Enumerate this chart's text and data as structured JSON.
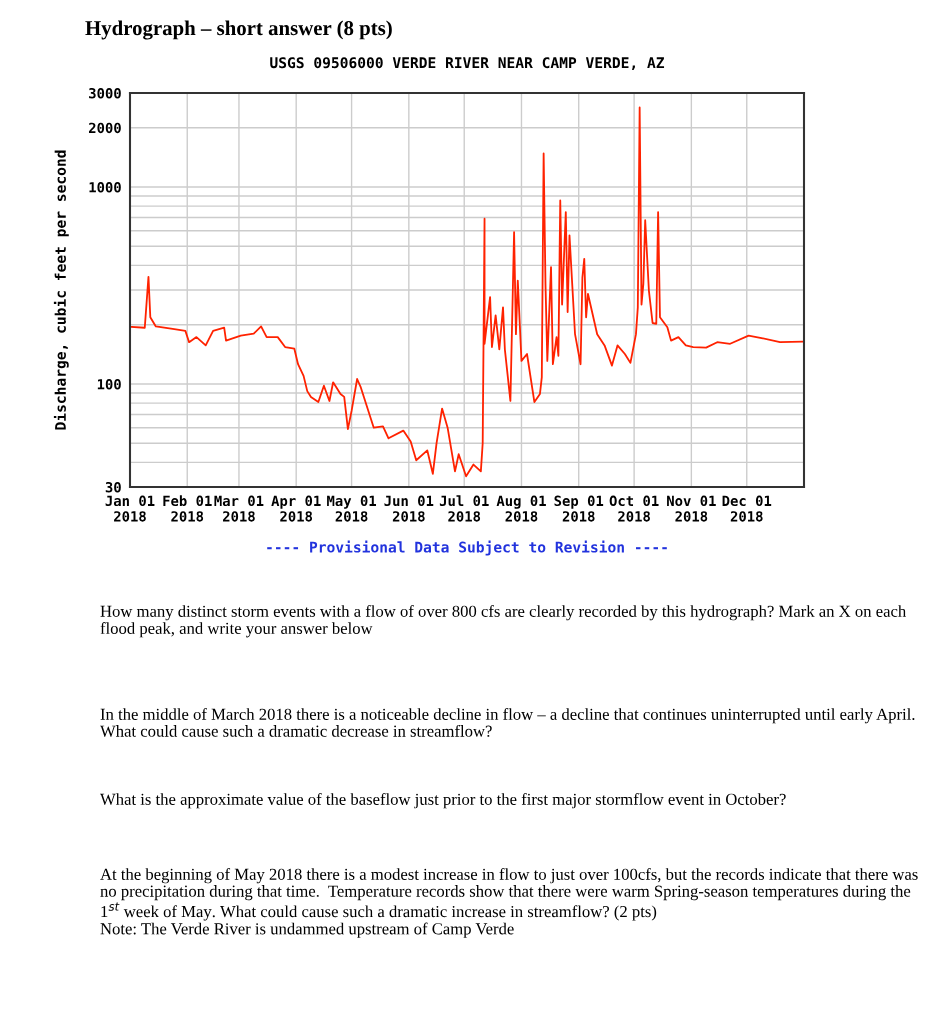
{
  "chart_data": {
    "type": "line",
    "title": "USGS 09506000 VERDE RIVER NEAR CAMP VERDE, AZ",
    "subtitle": "Hydrograph – short answer (8 pts)",
    "ylabel": "Discharge, cubic feet per second",
    "annotations": [
      "---- Provisional Data Subject to Revision ----",
      "How many distinct storm events with a flow of over 800 cfs are clearly recorded by this hydrograph? Mark an X on each flood peak, and write your answer below",
      "In the middle of March 2018 there is a noticeable decline in flow – a decline that continues uninterrupted until early April. What could cause such a dramatic decrease in streamflow?",
      "What is the approximate value of the baseflow just prior to the first major stormflow event in October?",
      "At the beginning of May 2018 there is a modest increase in flow to just over 100cfs, but the records indicate that there was no precipitation during that time.  Temperature records show that there were warm Spring-season temperatures during the 1$^{st}$ week of May. What could cause such a dramatic increase in streamflow? (2 pts)\nNote: The Verde River is undammed upstream of Camp Verde"
    ],
    "x": [
      "2018-01-02",
      "2018-01-09",
      "2018-01-11",
      "2018-01-12",
      "2018-01-15",
      "2018-01-25",
      "2018-01-31",
      "2018-02-02",
      "2018-02-06",
      "2018-02-11",
      "2018-02-15",
      "2018-02-21",
      "2018-02-22",
      "2018-03-02",
      "2018-03-09",
      "2018-03-13",
      "2018-03-16",
      "2018-03-22",
      "2018-03-26",
      "2018-03-31",
      "2018-04-02",
      "2018-04-05",
      "2018-04-07",
      "2018-04-09",
      "2018-04-13",
      "2018-04-16",
      "2018-04-19",
      "2018-04-21",
      "2018-04-25",
      "2018-04-27",
      "2018-04-29",
      "2018-05-01",
      "2018-05-04",
      "2018-05-06",
      "2018-05-13",
      "2018-05-18",
      "2018-05-21",
      "2018-05-29",
      "2018-06-02",
      "2018-06-05",
      "2018-06-11",
      "2018-06-14",
      "2018-06-16",
      "2018-06-19",
      "2018-06-22",
      "2018-06-26",
      "2018-06-28",
      "2018-07-02",
      "2018-07-06",
      "2018-07-10",
      "2018-07-11",
      "2018-07-12",
      "2018-07-12",
      "2018-07-15",
      "2018-07-16",
      "2018-07-18",
      "2018-07-20",
      "2018-07-22",
      "2018-07-23",
      "2018-07-26",
      "2018-07-28",
      "2018-07-29",
      "2018-07-30",
      "2018-08-01",
      "2018-08-04",
      "2018-08-08",
      "2018-08-11",
      "2018-08-12",
      "2018-08-13",
      "2018-08-14",
      "2018-08-15",
      "2018-08-17",
      "2018-08-18",
      "2018-08-20",
      "2018-08-21",
      "2018-08-22",
      "2018-08-23",
      "2018-08-25",
      "2018-08-26",
      "2018-08-27",
      "2018-08-30",
      "2018-09-02",
      "2018-09-03",
      "2018-09-04",
      "2018-09-05",
      "2018-09-06",
      "2018-09-11",
      "2018-09-15",
      "2018-09-19",
      "2018-09-22",
      "2018-09-26",
      "2018-09-29",
      "2018-10-02",
      "2018-10-03",
      "2018-10-04",
      "2018-10-05",
      "2018-10-06",
      "2018-10-07",
      "2018-10-09",
      "2018-10-11",
      "2018-10-13",
      "2018-10-14",
      "2018-10-15",
      "2018-10-19",
      "2018-10-21",
      "2018-10-25",
      "2018-10-29",
      "2018-11-02",
      "2018-11-09",
      "2018-11-15",
      "2018-11-22",
      "2018-12-02",
      "2018-12-09",
      "2018-12-19",
      "2018-12-31"
    ],
    "series": [
      {
        "color": "#ff2200",
        "values": [
          195,
          193,
          350,
          218,
          196,
          190,
          186,
          163,
          173,
          157,
          186,
          193,
          166,
          176,
          180,
          196,
          173,
          173,
          154,
          151,
          126,
          110,
          92,
          86,
          81,
          98,
          82,
          102,
          89,
          86,
          59,
          73,
          106,
          96,
          60,
          61,
          53,
          58,
          51,
          41,
          46,
          35,
          50,
          75,
          60,
          36,
          44,
          34,
          39,
          36,
          50,
          690,
          160,
          276,
          154,
          223,
          150,
          245,
          150,
          82,
          590,
          179,
          335,
          131,
          142,
          81,
          89,
          108,
          1480,
          322,
          131,
          392,
          126,
          173,
          139,
          855,
          253,
          746,
          232,
          568,
          179,
          126,
          348,
          432,
          218,
          287,
          179,
          157,
          124,
          157,
          142,
          128,
          179,
          245,
          2535,
          253,
          322,
          678,
          298,
          204,
          202,
          746,
          218,
          194,
          166,
          173,
          157,
          154,
          153,
          163,
          160,
          176,
          171,
          163,
          164
        ]
      }
    ],
    "log": true,
    "ylim": [
      30,
      3000
    ],
    "yticks": [
      30,
      {
        "value": 40,
        "label": null
      },
      {
        "value": 50,
        "label": null
      },
      {
        "value": 60,
        "label": null
      },
      {
        "value": 70,
        "label": null
      },
      {
        "value": 80,
        "label": null
      },
      {
        "value": 90,
        "label": null
      },
      100,
      {
        "value": 200,
        "label": null
      },
      {
        "value": 300,
        "label": null
      },
      {
        "value": 400,
        "label": null
      },
      {
        "value": 500,
        "label": null
      },
      {
        "value": 600,
        "label": null
      },
      {
        "value": 700,
        "label": null
      },
      {
        "value": 800,
        "label": null
      },
      {
        "value": 900,
        "label": null
      },
      1000,
      2000,
      3000
    ],
    "xlim": [
      "2018-01-01",
      "2019-01-01"
    ],
    "xticks": [
      {
        "value": "2018-01-01",
        "label": "Jan 01\n2018"
      },
      {
        "value": "2018-02-01",
        "label": "Feb 01\n2018"
      },
      {
        "value": "2018-03-01",
        "label": "Mar 01\n2018"
      },
      {
        "value": "2018-04-01",
        "label": "Apr 01\n2018"
      },
      {
        "value": "2018-05-01",
        "label": "May 01\n2018"
      },
      {
        "value": "2018-06-01",
        "label": "Jun 01\n2018"
      },
      {
        "value": "2018-07-01",
        "label": "Jul 01\n2018"
      },
      {
        "value": "2018-08-01",
        "label": "Aug 01\n2018"
      },
      {
        "value": "2018-09-01",
        "label": "Sep 01\n2018"
      },
      {
        "value": "2018-10-01",
        "label": "Oct 01\n2018"
      },
      {
        "value": "2018-11-01",
        "label": "Nov 01\n2018"
      },
      {
        "value": "2018-12-01",
        "label": "Dec 01\n2018"
      }
    ],
    "grid": true,
    "marker": "none",
    "line_style": "solid"
  }
}
